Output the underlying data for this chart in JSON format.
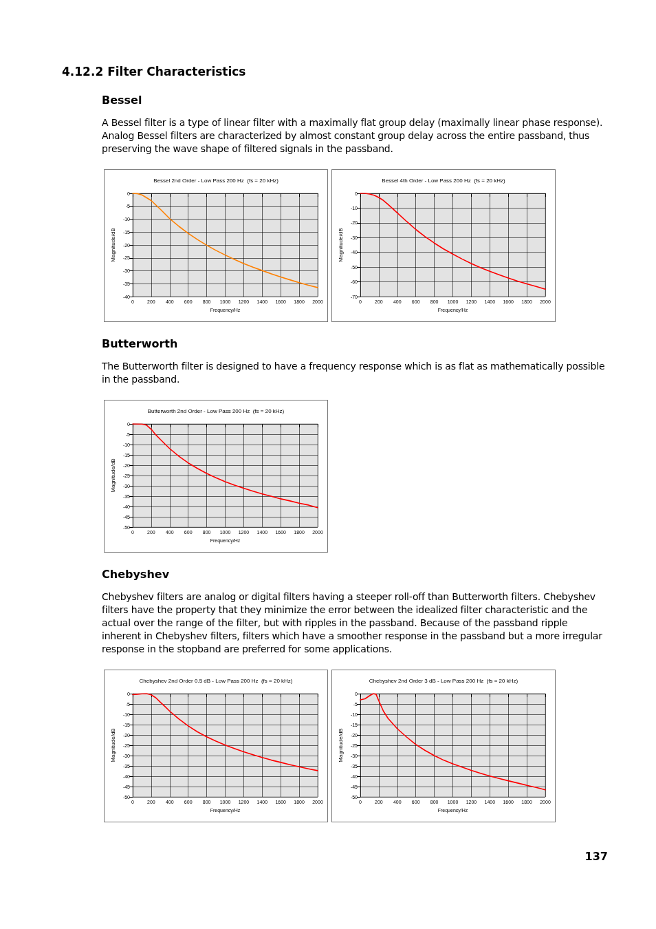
{
  "chart_data": [
    {
      "type": "line",
      "title": "Bessel 2nd Order - Low Pass 200 Hz  (fs = 20 kHz)",
      "xlabel": "Frequency/Hz",
      "ylabel": "Magnitude/dB",
      "annotations": [
        "4.12.2 Filter Characteristics",
        "Bessel",
        "A Bessel filter is a type of linear filter with a maximally flat group delay (maximally linear phase response). Analog Bessel filters are characterized by almost constant group delay across the entire passband, thus preserving the wave shape of filtered signals in the passband."
      ],
      "x": [
        0,
        50,
        100,
        200,
        300,
        400,
        500,
        600,
        700,
        800,
        900,
        1000,
        1100,
        1200,
        1300,
        1400,
        1500,
        1600,
        1700,
        1800,
        1900,
        2000
      ],
      "values": [
        0,
        -0.1,
        -0.6,
        -2.8,
        -6.2,
        -9.8,
        -12.8,
        -15.5,
        -17.9,
        -20.1,
        -22.1,
        -23.9,
        -25.6,
        -27.2,
        -28.6,
        -29.9,
        -31.2,
        -32.4,
        -33.5,
        -34.6,
        -35.6,
        -36.5
      ],
      "color": "#ff8000",
      "xlim": [
        0,
        2000
      ],
      "xticks": [
        0,
        200,
        400,
        600,
        800,
        1000,
        1200,
        1400,
        1600,
        1800,
        2000
      ],
      "ylim": [
        -40,
        0
      ],
      "yticks": [
        0,
        -5,
        -10,
        -15,
        -20,
        -25,
        -30,
        -35,
        -40
      ],
      "grid": true,
      "marker": "none",
      "line_style": "solid"
    },
    {
      "type": "line",
      "title": "Bessel 4th Order - Low Pass 200 Hz  (fs = 20 kHz)",
      "xlabel": "Frequency/Hz",
      "ylabel": "Magnitude/dB",
      "x": [
        0,
        50,
        100,
        150,
        200,
        250,
        300,
        400,
        500,
        600,
        700,
        800,
        900,
        1000,
        1100,
        1200,
        1300,
        1400,
        1500,
        1600,
        1700,
        1800,
        1900,
        2000
      ],
      "values": [
        0,
        0,
        -0.5,
        -1.3,
        -2.8,
        -4.8,
        -7.5,
        -13.2,
        -19,
        -24.5,
        -29.3,
        -33.7,
        -37.7,
        -41.2,
        -44.5,
        -47.6,
        -50.4,
        -52.9,
        -55.2,
        -57.4,
        -59.5,
        -61.4,
        -63.1,
        -65
      ],
      "color": "#ff0000",
      "xlim": [
        0,
        2000
      ],
      "xticks": [
        0,
        200,
        400,
        600,
        800,
        1000,
        1200,
        1400,
        1600,
        1800,
        2000
      ],
      "ylim": [
        -70,
        0
      ],
      "yticks": [
        0,
        -10,
        -20,
        -30,
        -40,
        -50,
        -60,
        -70
      ],
      "grid": true,
      "marker": "none",
      "line_style": "solid"
    },
    {
      "type": "line",
      "title": "Butterworth 2nd Order - Low Pass 200 Hz  (fs = 20 kHz)",
      "xlabel": "Frequency/Hz",
      "ylabel": "Magnitude/dB",
      "annotations": [
        "Butterworth",
        "The Butterworth filter is designed to have a frequency response which is as flat as mathematically possible in the passband."
      ],
      "x": [
        0,
        100,
        150,
        200,
        250,
        300,
        400,
        500,
        600,
        700,
        800,
        900,
        1000,
        1100,
        1200,
        1300,
        1400,
        1500,
        1600,
        1700,
        1800,
        1900,
        2000
      ],
      "values": [
        0,
        -0.1,
        -0.6,
        -2.6,
        -5.3,
        -7.6,
        -12,
        -15.7,
        -18.9,
        -21.6,
        -24,
        -26.1,
        -28,
        -29.7,
        -31.2,
        -32.6,
        -33.9,
        -35.1,
        -36.3,
        -37.3,
        -38.4,
        -39.3,
        -40.6
      ],
      "color": "#ff0000",
      "xlim": [
        0,
        2000
      ],
      "xticks": [
        0,
        200,
        400,
        600,
        800,
        1000,
        1200,
        1400,
        1600,
        1800,
        2000
      ],
      "ylim": [
        -50,
        0
      ],
      "yticks": [
        0,
        -5,
        -10,
        -15,
        -20,
        -25,
        -30,
        -35,
        -40,
        -45,
        -50
      ],
      "grid": true,
      "marker": "none",
      "line_style": "solid"
    },
    {
      "type": "line",
      "title": "Chebyshev 2nd Order 0.5 dB - Low Pass 200 Hz  (fs = 20 kHz)",
      "xlabel": "Frequency/Hz",
      "ylabel": "Magnitude/dB",
      "annotations": [
        "Chebyshev",
        "Chebyshev filters are analog or digital filters having a steeper roll-off than Butterworth filters. Chebyshev filters have the property that they minimize the error between the idealized filter characteristic and the actual over the range of the filter, but with ripples in the passband. Because of the passband ripple inherent in Chebyshev filters, filters which have a smoother response in the passband but a more irregular response in the stopband are preferred for some applications."
      ],
      "x": [
        0,
        50,
        100,
        150,
        200,
        250,
        300,
        350,
        400,
        500,
        600,
        700,
        800,
        900,
        1000,
        1100,
        1200,
        1300,
        1400,
        1500,
        1600,
        1700,
        1800,
        1900,
        2000
      ],
      "values": [
        -0.5,
        -0.3,
        -0.1,
        0,
        -0.6,
        -2,
        -4.2,
        -6.3,
        -8.5,
        -12.3,
        -15.6,
        -18.5,
        -20.9,
        -23,
        -24.9,
        -26.6,
        -28.2,
        -29.6,
        -30.9,
        -32.2,
        -33.3,
        -34.4,
        -35.4,
        -36.4,
        -37.3
      ],
      "color": "#ff0000",
      "xlim": [
        0,
        2000
      ],
      "xticks": [
        0,
        200,
        400,
        600,
        800,
        1000,
        1200,
        1400,
        1600,
        1800,
        2000
      ],
      "ylim": [
        -50,
        0
      ],
      "yticks": [
        0,
        -5,
        -10,
        -15,
        -20,
        -25,
        -30,
        -35,
        -40,
        -45,
        -50
      ],
      "grid": true,
      "marker": "none",
      "line_style": "solid"
    },
    {
      "type": "line",
      "title": "Chebyshev 2nd Order 3 dB - Low Pass 200 Hz  (fs = 20 kHz)",
      "xlabel": "Frequency/Hz",
      "ylabel": "Magnitude/dB",
      "annotations": [
        "137"
      ],
      "x": [
        0,
        50,
        100,
        140,
        170,
        200,
        250,
        300,
        400,
        500,
        600,
        700,
        800,
        900,
        1000,
        1100,
        1200,
        1300,
        1400,
        1500,
        1600,
        1700,
        1800,
        1900,
        2000
      ],
      "values": [
        -3,
        -2.5,
        -1,
        0,
        -0.3,
        -3.5,
        -8.5,
        -12,
        -17,
        -21,
        -24.6,
        -27.5,
        -30,
        -32.2,
        -34,
        -35.6,
        -37.2,
        -38.6,
        -39.9,
        -41.1,
        -42.2,
        -43.3,
        -44.4,
        -45.4,
        -46.6
      ],
      "color": "#ff0000",
      "xlim": [
        0,
        2000
      ],
      "xticks": [
        0,
        200,
        400,
        600,
        800,
        1000,
        1200,
        1400,
        1600,
        1800,
        2000
      ],
      "ylim": [
        -50,
        0
      ],
      "yticks": [
        0,
        -5,
        -10,
        -15,
        -20,
        -25,
        -30,
        -35,
        -40,
        -45,
        -50
      ],
      "grid": true,
      "marker": "none",
      "line_style": "solid"
    }
  ]
}
